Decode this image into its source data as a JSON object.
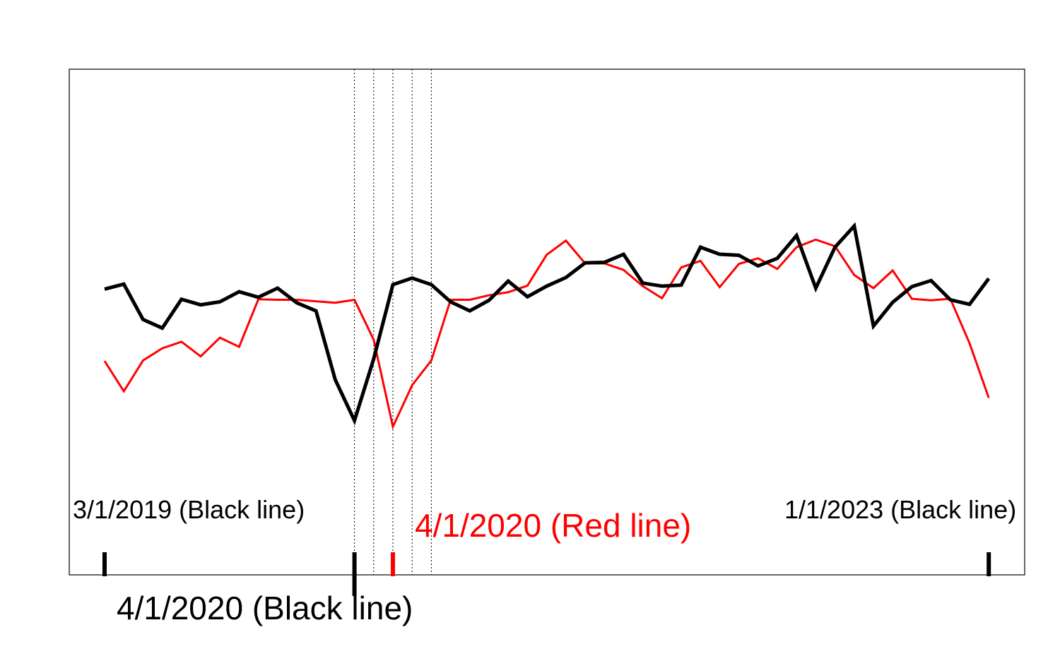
{
  "chart_data": {
    "type": "line",
    "x_start": "2019-03",
    "x_end": "2023-01",
    "step": "month",
    "ylim": [
      0,
      100
    ],
    "grid": false,
    "legend": "none",
    "series": [
      {
        "color": "#000000",
        "values": [
          56.5,
          57.5,
          50.5,
          48.8,
          54.5,
          53.4,
          54.0,
          56.0,
          54.9,
          56.7,
          53.8,
          52.2,
          38.6,
          30.5,
          42.7,
          57.4,
          58.7,
          57.4,
          54.0,
          52.2,
          54.3,
          58.1,
          55.0,
          57.1,
          58.8,
          61.7,
          61.8,
          63.4,
          57.7,
          57.1,
          57.3,
          64.8,
          63.4,
          63.2,
          61.1,
          62.6,
          67.1,
          56.7,
          64.8,
          69.0,
          49.2,
          53.9,
          57.0,
          58.2,
          54.4,
          53.5,
          58.6
        ]
      },
      {
        "color": "#ff0000",
        "values": [
          42.3,
          36.3,
          42.4,
          44.8,
          46.1,
          43.2,
          46.9,
          45.1,
          54.5,
          54.4,
          54.4,
          54.1,
          53.8,
          54.4,
          46.5,
          29.3,
          37.5,
          42.4,
          54.4,
          54.4,
          55.3,
          55.9,
          57.2,
          63.3,
          66.1,
          61.6,
          61.6,
          60.3,
          57.1,
          54.7,
          60.8,
          62.1,
          56.9,
          61.5,
          62.6,
          60.5,
          64.8,
          66.3,
          65.0,
          59.3,
          56.7,
          60.2,
          54.6,
          54.3,
          54.6,
          45.8,
          35.0
        ]
      }
    ],
    "annotations": {
      "black_start": "3/1/2019 (Black line)",
      "black_end": "1/1/2023 (Black line)",
      "red_mark": "4/1/2020 (Red line)",
      "black_mark": "4/1/2020 (Black line)"
    },
    "black_ticks_month_index": [
      0,
      13,
      46
    ],
    "red_tick_month_index": 15,
    "dotted_lines_month_index": [
      13,
      14,
      15,
      16,
      17
    ]
  }
}
